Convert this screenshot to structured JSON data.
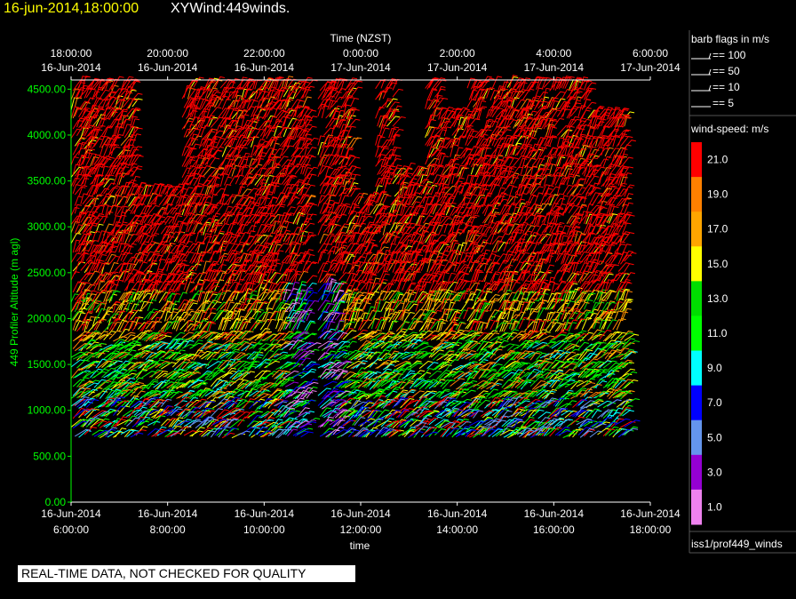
{
  "header": {
    "datetime": "16-jun-2014,18:00:00",
    "product": "XYWind:449winds."
  },
  "footer": {
    "qc_note": "REAL-TIME DATA, NOT CHECKED FOR QUALITY"
  },
  "legend": {
    "barb_title": "barb flags in m/s",
    "barb_flags": [
      {
        "label": "== 100",
        "speed": 100
      },
      {
        "label": "== 50",
        "speed": 50
      },
      {
        "label": "== 10",
        "speed": 10
      },
      {
        "label": "== 5",
        "speed": 5
      }
    ],
    "speed_title": "wind-speed: m/s",
    "speed_bins": [
      {
        "label": "21.0",
        "color": "#ff0000"
      },
      {
        "label": "19.0",
        "color": "#ff8000"
      },
      {
        "label": "17.0",
        "color": "#ffa500"
      },
      {
        "label": "15.0",
        "color": "#ffff00"
      },
      {
        "label": "13.0",
        "color": "#00dd00"
      },
      {
        "label": "11.0",
        "color": "#00ff00"
      },
      {
        "label": "9.0",
        "color": "#00ffff"
      },
      {
        "label": "7.0",
        "color": "#0000ff"
      },
      {
        "label": "5.0",
        "color": "#6495ed"
      },
      {
        "label": "3.0",
        "color": "#9400d3"
      },
      {
        "label": "1.0",
        "color": "#ee82ee"
      }
    ],
    "source": "iss1/prof449_winds"
  },
  "chart_data": {
    "type": "scatter",
    "subtype": "wind-barb time-height plot",
    "xlabel": "time",
    "xlabel_top": "Time (NZST)",
    "ylabel": "449 Profiler Altitude (m agl)",
    "x_range_hours": [
      6,
      18
    ],
    "ylim": [
      0,
      4600
    ],
    "y_ticks": [
      "0.00",
      "500.00",
      "1000.00",
      "1500.00",
      "2000.00",
      "2500.00",
      "3000.00",
      "3500.00",
      "4000.00",
      "4500.00"
    ],
    "x_ticks_bottom": [
      {
        "date": "16-Jun-2014",
        "time": "6:00:00",
        "hour": 6
      },
      {
        "date": "16-Jun-2014",
        "time": "8:00:00",
        "hour": 8
      },
      {
        "date": "16-Jun-2014",
        "time": "10:00:00",
        "hour": 10
      },
      {
        "date": "16-Jun-2014",
        "time": "12:00:00",
        "hour": 12
      },
      {
        "date": "16-Jun-2014",
        "time": "14:00:00",
        "hour": 14
      },
      {
        "date": "16-Jun-2014",
        "time": "16:00:00",
        "hour": 16
      },
      {
        "date": "16-Jun-2014",
        "time": "18:00:00",
        "hour": 18
      }
    ],
    "x_ticks_top": [
      {
        "time": "18:00:00",
        "date": "16-Jun-2014",
        "hour": 6
      },
      {
        "time": "20:00:00",
        "date": "16-Jun-2014",
        "hour": 8
      },
      {
        "time": "22:00:00",
        "date": "16-Jun-2014",
        "hour": 10
      },
      {
        "time": "0:00:00",
        "date": "17-Jun-2014",
        "hour": 12
      },
      {
        "time": "2:00:00",
        "date": "17-Jun-2014",
        "hour": 14
      },
      {
        "time": "4:00:00",
        "date": "17-Jun-2014",
        "hour": 16
      },
      {
        "time": "6:00:00",
        "date": "17-Jun-2014",
        "hour": 18
      }
    ],
    "grid": false,
    "legend_position": "right",
    "colors": {
      "background": "#000000",
      "y_axis_labels": "#00ff00",
      "axis_lines": "#ffffff"
    }
  }
}
